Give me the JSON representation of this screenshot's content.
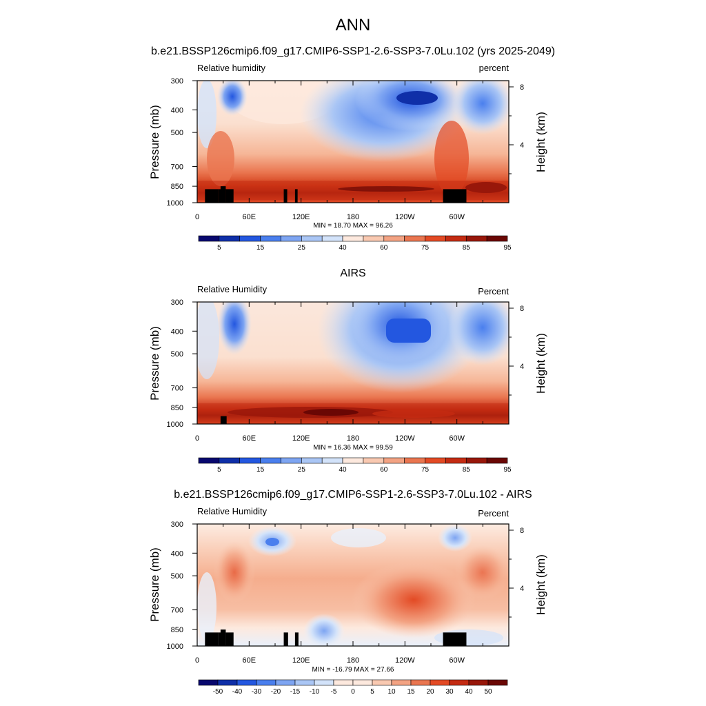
{
  "figure": {
    "title": "ANN",
    "subtitle": "b.e21.BSSP126cmip6.f09_g17.CMIP6-SSP1-2.6-SSP3-7.0Lu.102 (yrs 2025-2049)"
  },
  "chart_data": [
    {
      "type": "heatmap",
      "panel_title": "",
      "left_label": "Relative humidity",
      "right_label": "percent",
      "ylabel": "Pressure (mb)",
      "y2label": "Height (km)",
      "x_ticks": [
        "0",
        "60E",
        "120E",
        "180",
        "120W",
        "60W"
      ],
      "x_tick_lon": [
        0,
        60,
        120,
        180,
        240,
        300
      ],
      "xlim": [
        0,
        360
      ],
      "y_ticks": [
        "300",
        "400",
        "500",
        "700",
        "850",
        "1000"
      ],
      "y_tick_p": [
        300,
        400,
        500,
        700,
        850,
        1000
      ],
      "ylim": [
        1000,
        300
      ],
      "y2_ticks": [
        "8",
        "4"
      ],
      "y2_tick_km": [
        8,
        4
      ],
      "stats": "MIN = 18.70  MAX = 96.26",
      "min": 18.7,
      "max": 96.26,
      "colorbar": {
        "labels": [
          "5",
          "15",
          "25",
          "40",
          "60",
          "75",
          "85",
          "95"
        ],
        "colors": [
          "#08086e",
          "#0f2fa8",
          "#2357e0",
          "#4a7fee",
          "#7ea5f2",
          "#aac6f5",
          "#d3e3fa",
          "#fde9de",
          "#f9c9b1",
          "#f3a383",
          "#ea7650",
          "#e34a24",
          "#c42b12",
          "#98170a",
          "#6a0704"
        ]
      },
      "land_mask": [
        {
          "lon": [
            9,
            24
          ],
          "p_top": 875
        },
        {
          "lon": [
            24,
            28
          ],
          "p_top": 875
        },
        {
          "lon": [
            27,
            33
          ],
          "p_top": 850
        },
        {
          "lon": [
            33,
            42
          ],
          "p_top": 875
        },
        {
          "lon": [
            100,
            104
          ],
          "p_top": 875
        },
        {
          "lon": [
            113,
            116
          ],
          "p_top": 875
        },
        {
          "lon": [
            284,
            311
          ],
          "p_top": 875
        }
      ]
    },
    {
      "type": "heatmap",
      "panel_title": "AIRS",
      "left_label": "Relative Humidity",
      "right_label": "Percent",
      "ylabel": "Pressure (mb)",
      "y2label": "Height (km)",
      "x_ticks": [
        "0",
        "60E",
        "120E",
        "180",
        "120W",
        "60W"
      ],
      "x_tick_lon": [
        0,
        60,
        120,
        180,
        240,
        300
      ],
      "xlim": [
        0,
        360
      ],
      "y_ticks": [
        "300",
        "400",
        "500",
        "700",
        "850",
        "1000"
      ],
      "y_tick_p": [
        300,
        400,
        500,
        700,
        850,
        1000
      ],
      "ylim": [
        1000,
        300
      ],
      "y2_ticks": [
        "8",
        "4"
      ],
      "y2_tick_km": [
        8,
        4
      ],
      "stats": "MIN = 16.36  MAX = 99.59",
      "min": 16.36,
      "max": 99.59,
      "colorbar": {
        "labels": [
          "5",
          "15",
          "25",
          "40",
          "60",
          "75",
          "85",
          "95"
        ],
        "colors": [
          "#08086e",
          "#0f2fa8",
          "#2357e0",
          "#4a7fee",
          "#7ea5f2",
          "#aac6f5",
          "#d3e3fa",
          "#fde9de",
          "#f9c9b1",
          "#f3a383",
          "#ea7650",
          "#e34a24",
          "#c42b12",
          "#98170a",
          "#6a0704"
        ]
      },
      "land_mask": [
        {
          "lon": [
            27,
            34
          ],
          "p_top": 925
        }
      ]
    },
    {
      "type": "heatmap",
      "panel_title": "b.e21.BSSP126cmip6.f09_g17.CMIP6-SSP1-2.6-SSP3-7.0Lu.102 - AIRS",
      "left_label": "Relative Humidity",
      "right_label": "Percent",
      "ylabel": "Pressure (mb)",
      "y2label": "Height (km)",
      "x_ticks": [
        "0",
        "60E",
        "120E",
        "180",
        "120W",
        "60W"
      ],
      "x_tick_lon": [
        0,
        60,
        120,
        180,
        240,
        300
      ],
      "xlim": [
        0,
        360
      ],
      "y_ticks": [
        "300",
        "400",
        "500",
        "700",
        "850",
        "1000"
      ],
      "y_tick_p": [
        300,
        400,
        500,
        700,
        850,
        1000
      ],
      "ylim": [
        1000,
        300
      ],
      "y2_ticks": [
        "8",
        "4"
      ],
      "y2_tick_km": [
        8,
        4
      ],
      "stats": "MIN = -16.79  MAX = 27.66",
      "min": -16.79,
      "max": 27.66,
      "colorbar": {
        "labels": [
          "-50",
          "-40",
          "-30",
          "-20",
          "-15",
          "-10",
          "-5",
          "0",
          "5",
          "10",
          "15",
          "20",
          "30",
          "40",
          "50"
        ],
        "colors": [
          "#08086e",
          "#0f2fa8",
          "#2357e0",
          "#4a7fee",
          "#7ea5f2",
          "#aac6f5",
          "#d3e3fa",
          "#fde9de",
          "#fde9de",
          "#f9c9b1",
          "#f3a383",
          "#ea7650",
          "#e34a24",
          "#c42b12",
          "#98170a",
          "#6a0704"
        ]
      },
      "land_mask": [
        {
          "lon": [
            9,
            24
          ],
          "p_top": 875
        },
        {
          "lon": [
            24,
            28
          ],
          "p_top": 875
        },
        {
          "lon": [
            27,
            33
          ],
          "p_top": 850
        },
        {
          "lon": [
            33,
            42
          ],
          "p_top": 875
        },
        {
          "lon": [
            100,
            105
          ],
          "p_top": 875
        },
        {
          "lon": [
            113,
            117
          ],
          "p_top": 875
        },
        {
          "lon": [
            284,
            311
          ],
          "p_top": 875
        }
      ]
    }
  ]
}
